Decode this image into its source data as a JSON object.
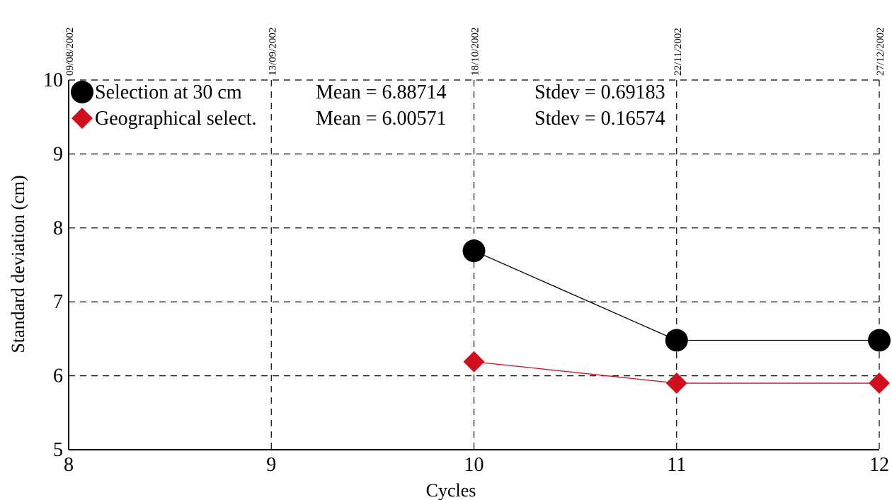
{
  "chart_data": {
    "type": "line",
    "xlabel": "Cycles",
    "ylabel": "Standard deviation (cm)",
    "xlim": [
      8,
      12
    ],
    "ylim": [
      5,
      10
    ],
    "x_ticks": [
      8,
      9,
      10,
      11,
      12
    ],
    "y_ticks": [
      5,
      6,
      7,
      8,
      9,
      10
    ],
    "top_axis_dates": [
      "09/08/2002",
      "13/09/2002",
      "18/10/2002",
      "22/11/2002",
      "27/12/2002"
    ],
    "grid": true,
    "legend_position": "top-left",
    "series": [
      {
        "name": "Selection at 30 cm",
        "color": "#000000",
        "marker": "circle",
        "x": [
          10,
          11,
          12
        ],
        "values": [
          7.69,
          6.48,
          6.48
        ],
        "mean_label": "Mean = 6.88714",
        "stdev_label": "Stdev = 0.69183"
      },
      {
        "name": "Geographical select.",
        "color": "#d0101e",
        "marker": "diamond",
        "x": [
          10,
          11,
          12
        ],
        "values": [
          6.19,
          5.9,
          5.9
        ],
        "mean_label": "Mean = 6.00571",
        "stdev_label": "Stdev = 0.16574"
      }
    ]
  }
}
